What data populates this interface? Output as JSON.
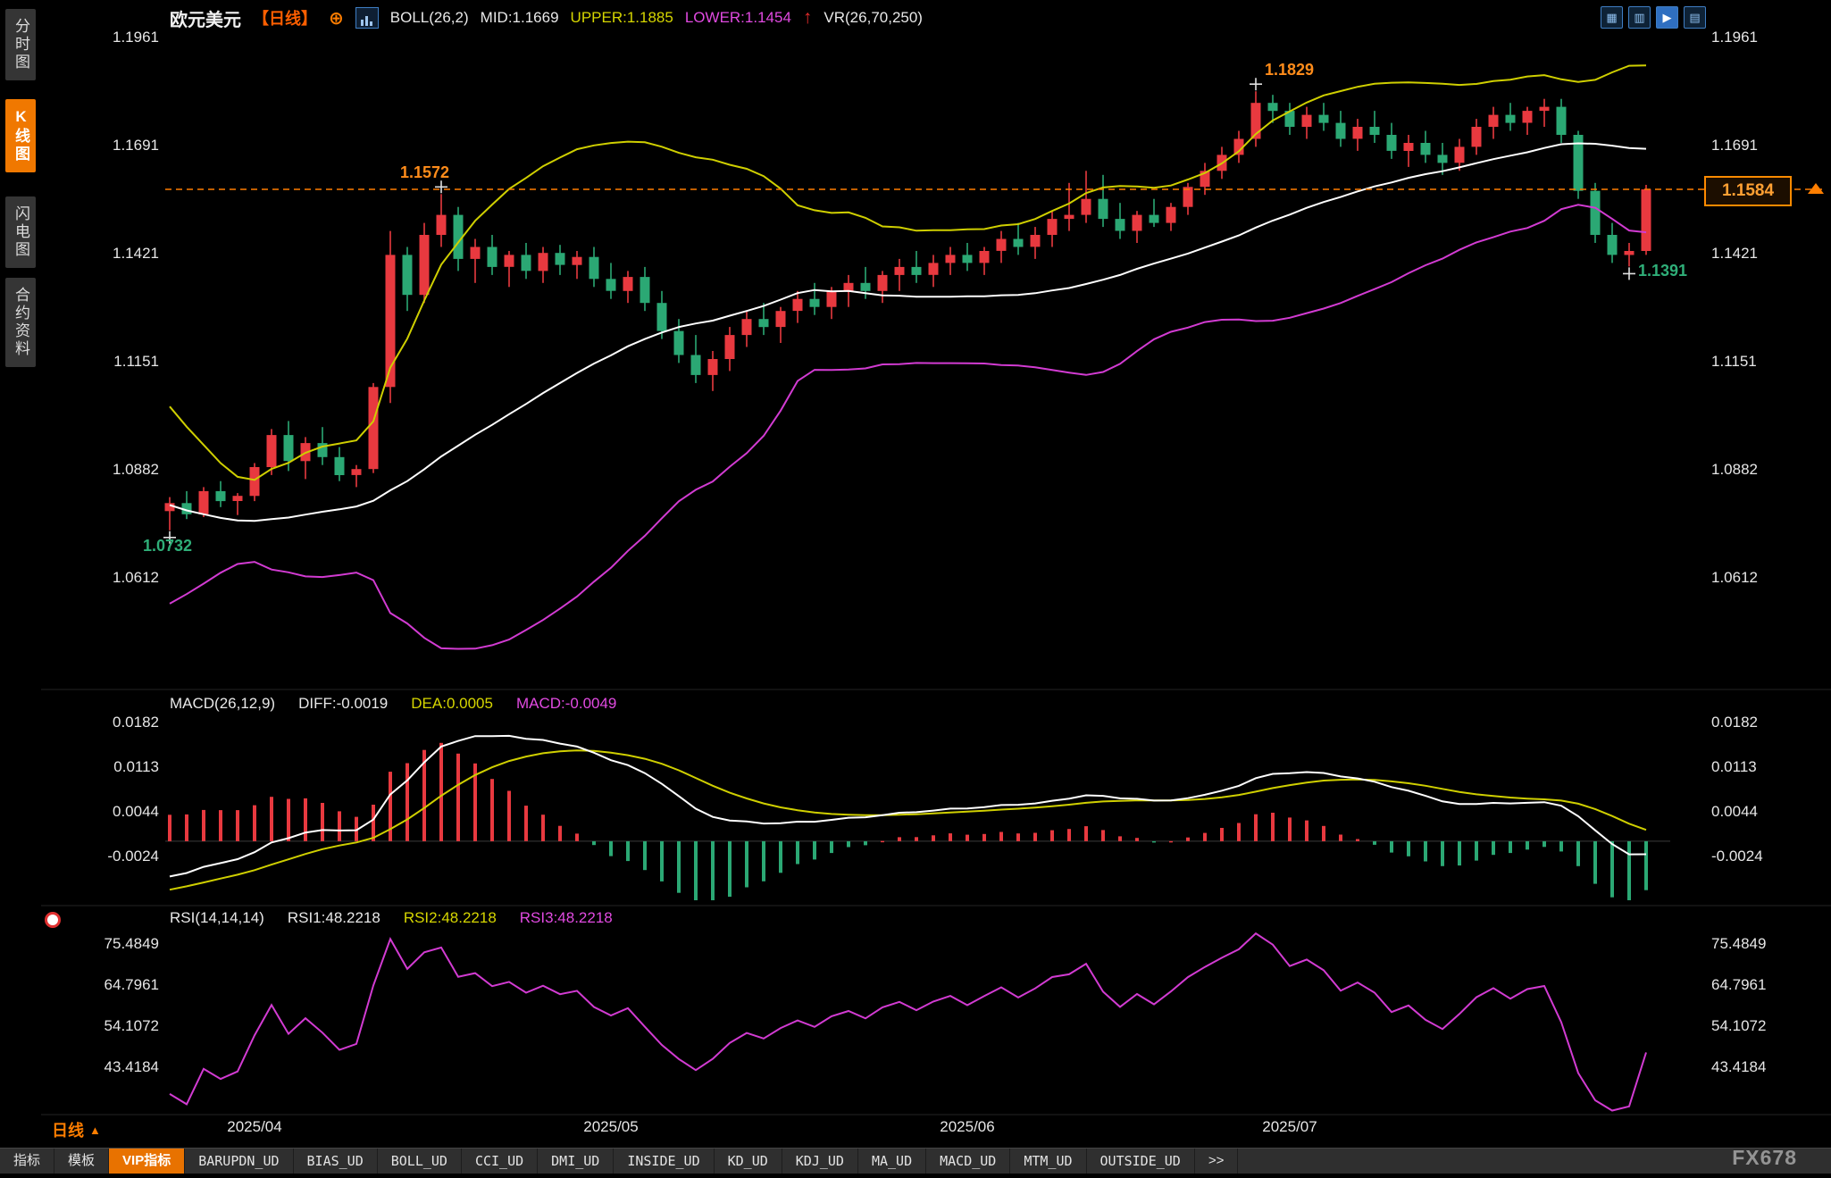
{
  "sidebar": {
    "items": [
      {
        "label": "分时图",
        "active": false
      },
      {
        "label": "K线图",
        "active": true
      },
      {
        "label": "闪电图",
        "active": false
      },
      {
        "label": "合约资料",
        "active": false
      }
    ]
  },
  "header": {
    "symbol": "欧元美元",
    "period_tag": "【日线】",
    "add_icon": "⊕",
    "boll_label": "BOLL(26,2)",
    "mid": "MID:1.1669",
    "upper": "UPPER:1.1885",
    "lower": "LOWER:1.1454",
    "up_arrow": "↑",
    "vr": "VR(26,70,250)"
  },
  "top_icons": [
    {
      "name": "grid-layout-icon",
      "glyph": "▦",
      "active": false
    },
    {
      "name": "dual-pane-icon",
      "glyph": "▥",
      "active": false
    },
    {
      "name": "kline-view-icon",
      "glyph": "▶",
      "active": true
    },
    {
      "name": "panel-layout-icon",
      "glyph": "▤",
      "active": false
    }
  ],
  "price_box": {
    "value": "1.1584"
  },
  "macd_header": {
    "name": "MACD(26,12,9)",
    "diff": "DIFF:-0.0019",
    "dea": "DEA:0.0005",
    "macd": "MACD:-0.0049"
  },
  "rsi_header": {
    "name": "RSI(14,14,14)",
    "rsi1": "RSI1:48.2218",
    "rsi2": "RSI2:48.2218",
    "rsi3": "RSI3:48.2218"
  },
  "footer": {
    "period_label": "日线",
    "period_arrow": "▲",
    "watermark": "FX678"
  },
  "tabs": [
    "指标",
    "模板",
    "VIP指标",
    "BARUPDN_UD",
    "BIAS_UD",
    "BOLL_UD",
    "CCI_UD",
    "DMI_UD",
    "INSIDE_UD",
    "KD_UD",
    "KDJ_UD",
    "MA_UD",
    "MACD_UD",
    "MTM_UD",
    "OUTSIDE_UD",
    ">>"
  ],
  "active_tab": "VIP指标",
  "colors": {
    "up": "#e8393f",
    "down": "#2ba874",
    "boll_upper": "#cfcf00",
    "boll_mid": "#ffffff",
    "boll_lower": "#d23bd2",
    "accent_orange": "#ff7e00",
    "cross": "#e0e0e0",
    "macd_diff": "#ffffff",
    "macd_dea": "#cfcf00",
    "rsi_line": "#d23bd2"
  },
  "chart_data": {
    "type": "candlestick",
    "title": "欧元美元 日线 (EUR/USD Daily)",
    "x_ticks": [
      "2025/04",
      "2025/05",
      "2025/06",
      "2025/07"
    ],
    "x_tick_candle_index": [
      5,
      26,
      47,
      66
    ],
    "main": {
      "y_ticks": [
        1.1961,
        1.1691,
        1.1421,
        1.1151,
        1.0882,
        1.0612
      ],
      "last_price": 1.1584,
      "boll": {
        "period": 26,
        "mult": 2,
        "mid": 1.1669,
        "upper": 1.1885,
        "lower": 1.1454
      },
      "prehistory_closes": [
        1.112,
        1.108,
        1.104,
        1.098,
        1.092,
        1.086,
        1.08,
        1.076,
        1.073,
        1.071,
        1.07,
        1.072,
        1.074,
        1.072,
        1.07,
        1.069,
        1.071,
        1.073,
        1.075,
        1.073,
        1.071,
        1.072,
        1.074,
        1.076,
        1.075
      ],
      "candles_ohlc": [
        [
          1.078,
          1.0815,
          1.0732,
          1.08
        ],
        [
          1.08,
          1.083,
          1.076,
          1.0772
        ],
        [
          1.0772,
          1.084,
          1.0765,
          1.083
        ],
        [
          1.083,
          1.0855,
          1.079,
          1.0805
        ],
        [
          1.0805,
          1.0825,
          1.077,
          1.0818
        ],
        [
          1.0818,
          1.09,
          1.0805,
          1.089
        ],
        [
          1.089,
          1.0985,
          1.087,
          1.097
        ],
        [
          1.097,
          1.1005,
          1.088,
          1.0905
        ],
        [
          1.0905,
          1.0965,
          1.086,
          1.095
        ],
        [
          1.095,
          1.099,
          1.0895,
          1.0915
        ],
        [
          1.0915,
          1.094,
          1.0855,
          1.087
        ],
        [
          1.087,
          1.0895,
          1.084,
          1.0885
        ],
        [
          1.0885,
          1.11,
          1.0875,
          1.109
        ],
        [
          1.109,
          1.148,
          1.105,
          1.142
        ],
        [
          1.142,
          1.144,
          1.128,
          1.132
        ],
        [
          1.132,
          1.15,
          1.13,
          1.147
        ],
        [
          1.147,
          1.1572,
          1.144,
          1.152
        ],
        [
          1.152,
          1.154,
          1.138,
          1.141
        ],
        [
          1.141,
          1.146,
          1.135,
          1.144
        ],
        [
          1.144,
          1.147,
          1.137,
          1.139
        ],
        [
          1.139,
          1.143,
          1.134,
          1.142
        ],
        [
          1.142,
          1.145,
          1.136,
          1.138
        ],
        [
          1.138,
          1.144,
          1.135,
          1.1425
        ],
        [
          1.1425,
          1.1445,
          1.137,
          1.1395
        ],
        [
          1.1395,
          1.143,
          1.136,
          1.1415
        ],
        [
          1.1415,
          1.144,
          1.134,
          1.136
        ],
        [
          1.136,
          1.14,
          1.131,
          1.133
        ],
        [
          1.133,
          1.138,
          1.13,
          1.1365
        ],
        [
          1.1365,
          1.139,
          1.128,
          1.13
        ],
        [
          1.13,
          1.133,
          1.121,
          1.123
        ],
        [
          1.123,
          1.126,
          1.115,
          1.117
        ],
        [
          1.117,
          1.122,
          1.11,
          1.112
        ],
        [
          1.112,
          1.118,
          1.108,
          1.116
        ],
        [
          1.116,
          1.124,
          1.113,
          1.122
        ],
        [
          1.122,
          1.128,
          1.119,
          1.126
        ],
        [
          1.126,
          1.13,
          1.122,
          1.124
        ],
        [
          1.124,
          1.129,
          1.12,
          1.128
        ],
        [
          1.128,
          1.133,
          1.125,
          1.131
        ],
        [
          1.131,
          1.135,
          1.127,
          1.129
        ],
        [
          1.129,
          1.134,
          1.126,
          1.133
        ],
        [
          1.133,
          1.137,
          1.129,
          1.135
        ],
        [
          1.135,
          1.139,
          1.131,
          1.133
        ],
        [
          1.133,
          1.138,
          1.13,
          1.137
        ],
        [
          1.137,
          1.141,
          1.133,
          1.139
        ],
        [
          1.139,
          1.143,
          1.135,
          1.137
        ],
        [
          1.137,
          1.142,
          1.134,
          1.14
        ],
        [
          1.14,
          1.144,
          1.137,
          1.142
        ],
        [
          1.142,
          1.145,
          1.138,
          1.14
        ],
        [
          1.14,
          1.144,
          1.137,
          1.143
        ],
        [
          1.143,
          1.148,
          1.14,
          1.146
        ],
        [
          1.146,
          1.15,
          1.142,
          1.144
        ],
        [
          1.144,
          1.149,
          1.141,
          1.147
        ],
        [
          1.147,
          1.153,
          1.144,
          1.151
        ],
        [
          1.151,
          1.16,
          1.148,
          1.152
        ],
        [
          1.152,
          1.163,
          1.15,
          1.156
        ],
        [
          1.156,
          1.162,
          1.149,
          1.151
        ],
        [
          1.151,
          1.155,
          1.146,
          1.148
        ],
        [
          1.148,
          1.153,
          1.145,
          1.152
        ],
        [
          1.152,
          1.156,
          1.149,
          1.15
        ],
        [
          1.15,
          1.155,
          1.148,
          1.154
        ],
        [
          1.154,
          1.16,
          1.152,
          1.159
        ],
        [
          1.159,
          1.165,
          1.157,
          1.163
        ],
        [
          1.163,
          1.169,
          1.161,
          1.167
        ],
        [
          1.167,
          1.173,
          1.165,
          1.171
        ],
        [
          1.171,
          1.1829,
          1.169,
          1.18
        ],
        [
          1.18,
          1.182,
          1.175,
          1.178
        ],
        [
          1.178,
          1.18,
          1.172,
          1.174
        ],
        [
          1.174,
          1.179,
          1.171,
          1.177
        ],
        [
          1.177,
          1.18,
          1.173,
          1.175
        ],
        [
          1.175,
          1.178,
          1.169,
          1.171
        ],
        [
          1.171,
          1.176,
          1.168,
          1.174
        ],
        [
          1.174,
          1.178,
          1.17,
          1.172
        ],
        [
          1.172,
          1.175,
          1.166,
          1.168
        ],
        [
          1.168,
          1.172,
          1.164,
          1.17
        ],
        [
          1.17,
          1.173,
          1.165,
          1.167
        ],
        [
          1.167,
          1.17,
          1.162,
          1.165
        ],
        [
          1.165,
          1.171,
          1.163,
          1.169
        ],
        [
          1.169,
          1.176,
          1.167,
          1.174
        ],
        [
          1.174,
          1.179,
          1.171,
          1.177
        ],
        [
          1.177,
          1.18,
          1.173,
          1.175
        ],
        [
          1.175,
          1.179,
          1.172,
          1.178
        ],
        [
          1.178,
          1.181,
          1.174,
          1.179
        ],
        [
          1.179,
          1.181,
          1.17,
          1.172
        ],
        [
          1.172,
          1.173,
          1.156,
          1.158
        ],
        [
          1.158,
          1.16,
          1.145,
          1.147
        ],
        [
          1.147,
          1.15,
          1.14,
          1.142
        ],
        [
          1.142,
          1.145,
          1.1391,
          1.143
        ],
        [
          1.143,
          1.1595,
          1.142,
          1.1584
        ]
      ]
    },
    "annotations": [
      {
        "text": "1.1572",
        "candle": 16,
        "kind": "high"
      },
      {
        "text": "1.1829",
        "candle": 64,
        "kind": "high"
      },
      {
        "text": "1.0732",
        "candle": 0,
        "kind": "low"
      },
      {
        "text": "1.1391",
        "candle": 86,
        "kind": "low"
      }
    ],
    "macd": {
      "params": [
        26,
        12,
        9
      ],
      "diff": -0.0019,
      "dea": 0.0005,
      "macd": -0.0049,
      "y_ticks": [
        0.0182,
        0.0113,
        0.0044,
        -0.0024
      ]
    },
    "rsi": {
      "params": [
        14,
        14,
        14
      ],
      "rsi1": 48.2218,
      "rsi2": 48.2218,
      "rsi3": 48.2218,
      "y_ticks": [
        75.4849,
        64.7961,
        54.1072,
        43.4184
      ]
    }
  }
}
